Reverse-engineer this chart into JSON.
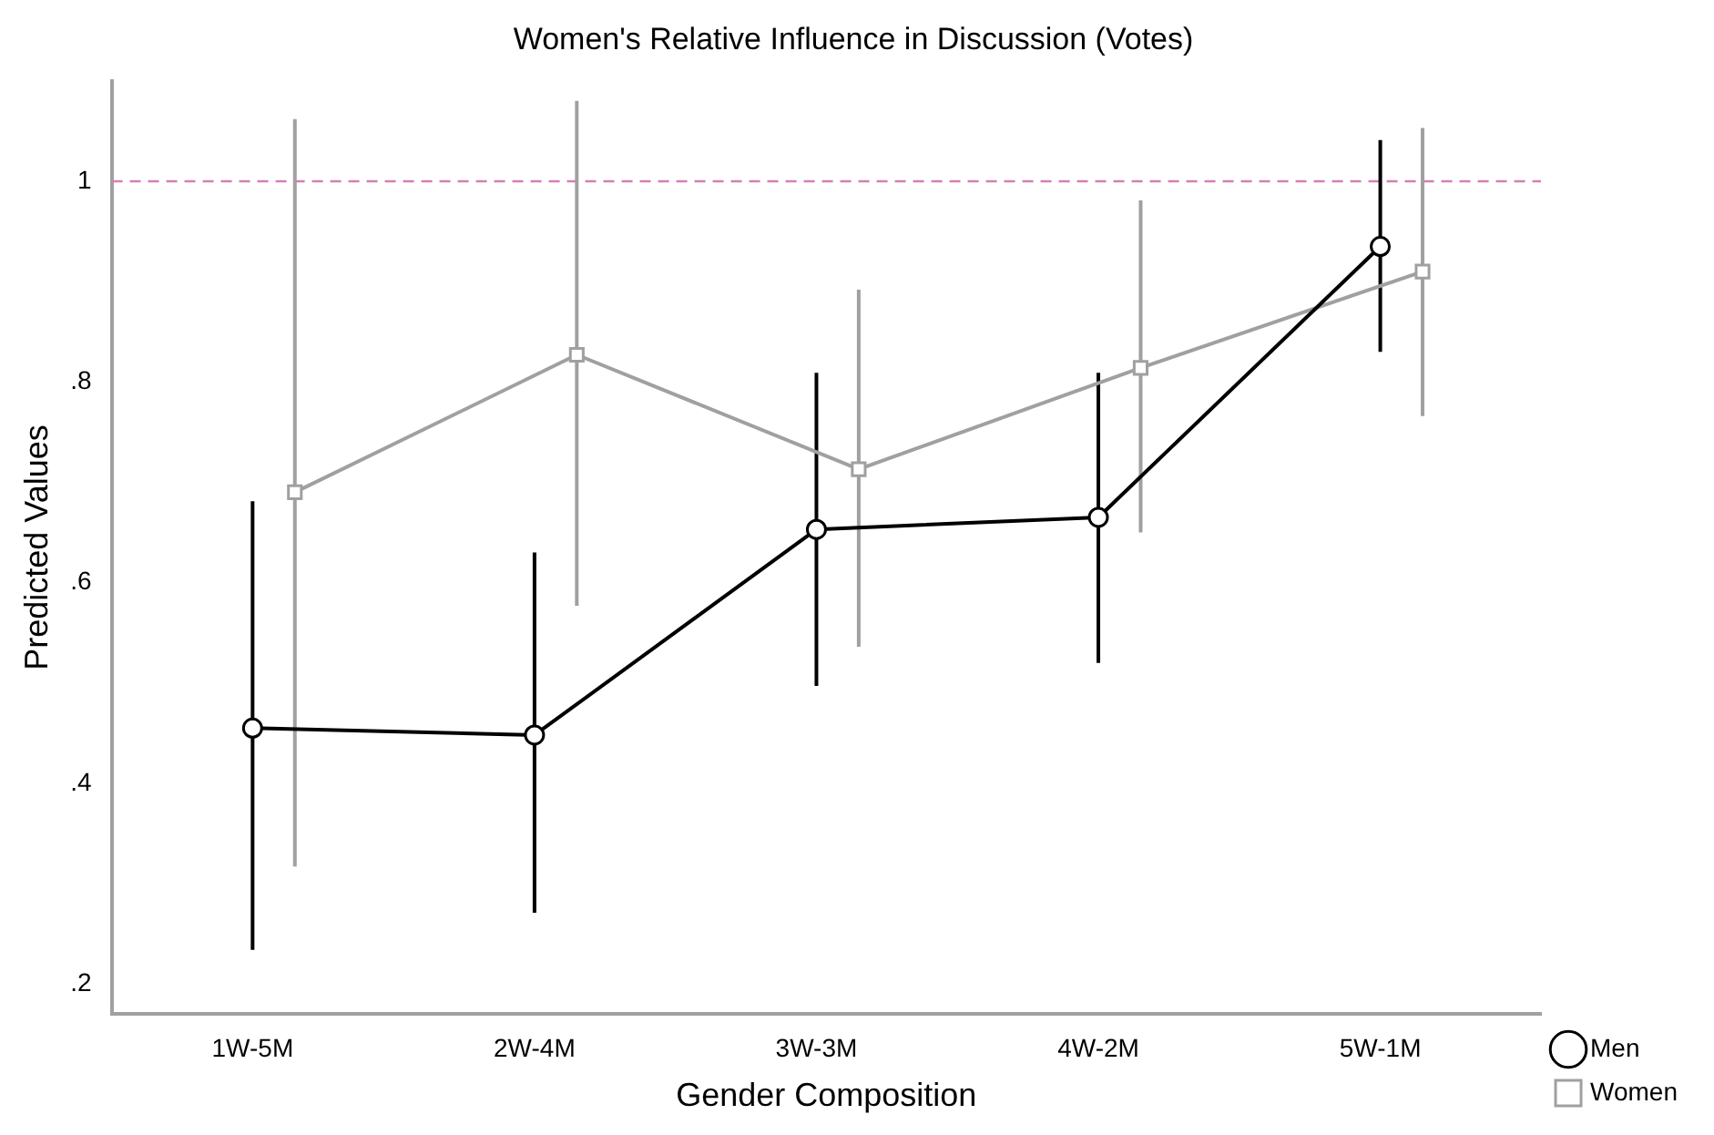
{
  "chart_data": {
    "type": "line",
    "title": "Women's Relative Influence in Discussion (Votes)",
    "xlabel": "Gender Composition",
    "ylabel": "Predicted Values",
    "categories": [
      "1W-5M",
      "2W-4M",
      "3W-3M",
      "4W-2M",
      "5W-1M"
    ],
    "series": [
      {
        "name": "Men",
        "color": "#000000",
        "marker": "circle",
        "values": [
          0.455,
          0.448,
          0.653,
          0.665,
          0.935
        ],
        "errors": [
          [
            0.234,
            0.681
          ],
          [
            0.271,
            0.63
          ],
          [
            0.497,
            0.809
          ],
          [
            0.52,
            0.809
          ],
          [
            0.83,
            1.041
          ]
        ]
      },
      {
        "name": "Women",
        "color": "#a0a0a0",
        "marker": "square",
        "values": [
          0.69,
          0.827,
          0.713,
          0.814,
          0.91
        ],
        "errors": [
          [
            0.317,
            1.062
          ],
          [
            0.577,
            1.08
          ],
          [
            0.536,
            0.892
          ],
          [
            0.65,
            0.981
          ],
          [
            0.766,
            1.053
          ]
        ]
      }
    ],
    "ylim": [
      0.17,
      1.1
    ],
    "yticks": [
      {
        "value": 0.2,
        "label": ".2"
      },
      {
        "value": 0.4,
        "label": ".4"
      },
      {
        "value": 0.6,
        "label": ".6"
      },
      {
        "value": 0.8,
        "label": ".8"
      },
      {
        "value": 1,
        "label": "1"
      }
    ],
    "ref_lines": [
      {
        "axis": "y",
        "value": 1,
        "color": "#d47fb3",
        "line_style": "dashed"
      }
    ],
    "grid": false,
    "legend": "bottom right",
    "line_style": "solid"
  }
}
